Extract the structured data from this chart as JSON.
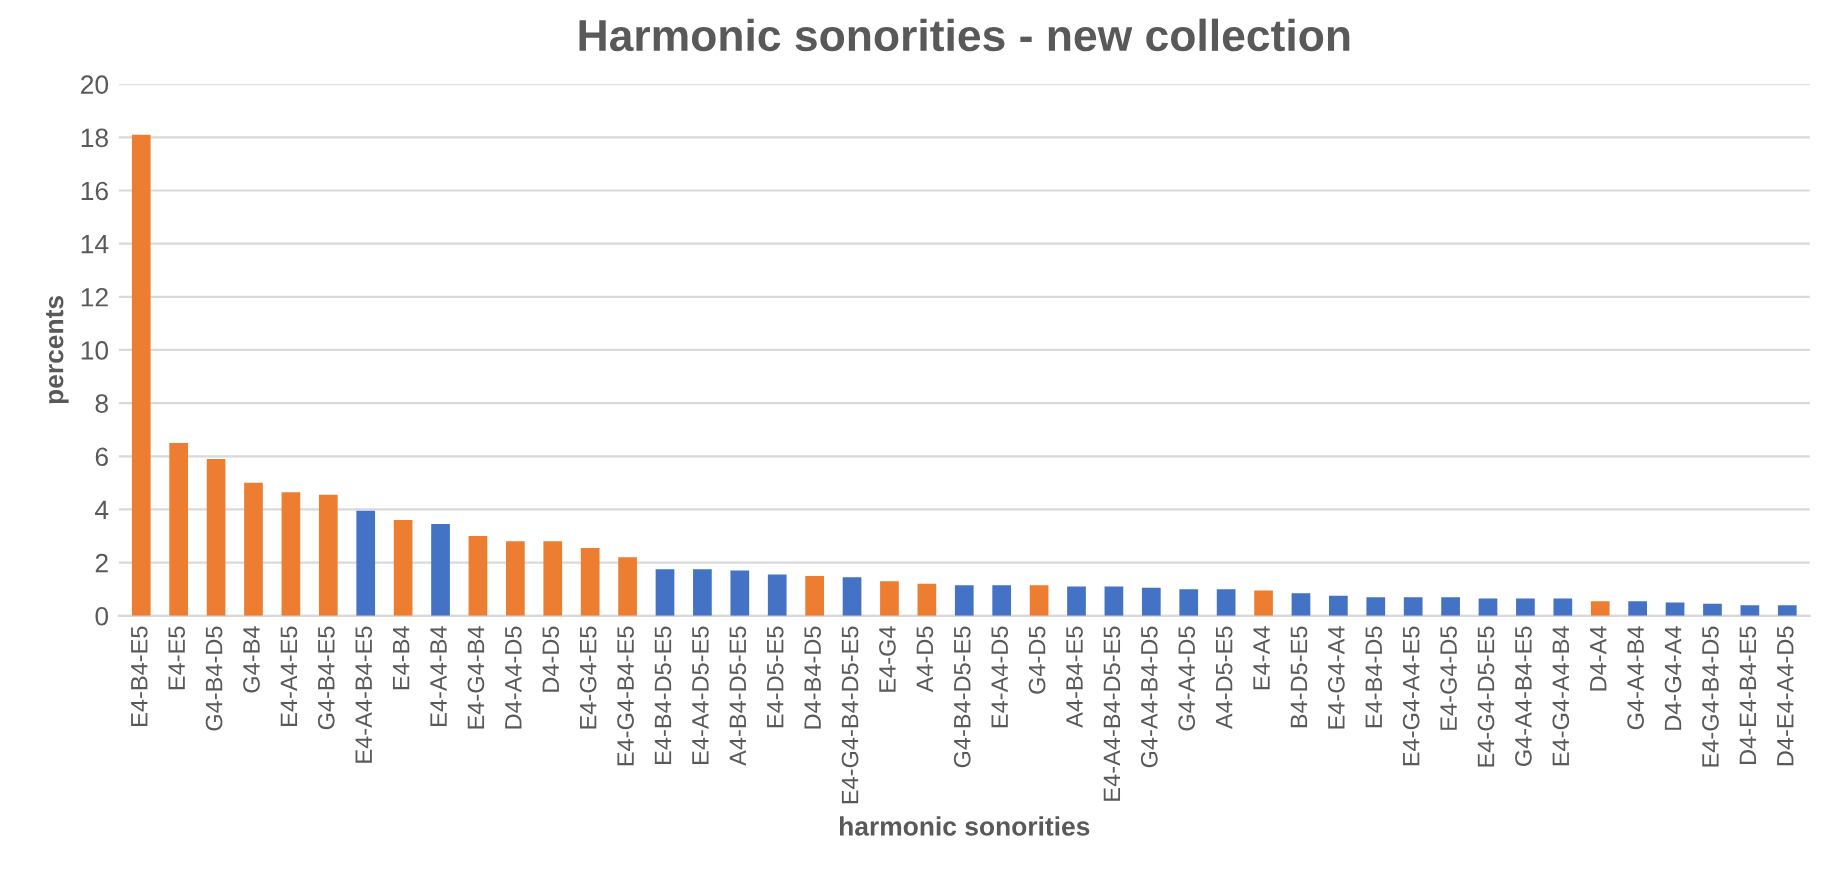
{
  "chart_data": {
    "type": "bar",
    "title": "Harmonic sonorities - new collection",
    "xlabel": "harmonic sonorities",
    "ylabel": "percents",
    "categories": [
      "E4-B4-E5",
      "E4-E5",
      "G4-B4-D5",
      "G4-B4",
      "E4-A4-E5",
      "G4-B4-E5",
      "E4-A4-B4-E5",
      "E4-B4",
      "E4-A4-B4",
      "E4-G4-B4",
      "D4-A4-D5",
      "D4-D5",
      "E4-G4-E5",
      "E4-G4-B4-E5",
      "E4-B4-D5-E5",
      "E4-A4-D5-E5",
      "A4-B4-D5-E5",
      "E4-D5-E5",
      "D4-B4-D5",
      "E4-G4-B4-D5-E5",
      "E4-G4",
      "A4-D5",
      "G4-B4-D5-E5",
      "E4-A4-D5",
      "G4-D5",
      "A4-B4-E5",
      "E4-A4-B4-D5-E5",
      "G4-A4-B4-D5",
      "G4-A4-D5",
      "A4-D5-E5",
      "E4-A4",
      "B4-D5-E5",
      "E4-G4-A4",
      "E4-B4-D5",
      "E4-G4-A4-E5",
      "E4-G4-D5",
      "E4-G4-D5-E5",
      "G4-A4-B4-E5",
      "E4-G4-A4-B4",
      "D4-A4",
      "G4-A4-B4",
      "D4-G4-A4",
      "E4-G4-B4-D5",
      "D4-E4-B4-E5",
      "D4-E4-A4-D5"
    ],
    "values": [
      18.1,
      6.5,
      5.9,
      5.0,
      4.65,
      4.55,
      3.95,
      3.6,
      3.45,
      3.0,
      2.8,
      2.8,
      2.55,
      2.2,
      1.75,
      1.75,
      1.7,
      1.55,
      1.5,
      1.45,
      1.3,
      1.2,
      1.15,
      1.15,
      1.15,
      1.1,
      1.1,
      1.05,
      1.0,
      1.0,
      0.95,
      0.85,
      0.75,
      0.7,
      0.7,
      0.7,
      0.65,
      0.65,
      0.65,
      0.55,
      0.55,
      0.5,
      0.45,
      0.4,
      0.4
    ],
    "colors": [
      "#ed7d31",
      "#ed7d31",
      "#ed7d31",
      "#ed7d31",
      "#ed7d31",
      "#ed7d31",
      "#4472c4",
      "#ed7d31",
      "#4472c4",
      "#ed7d31",
      "#ed7d31",
      "#ed7d31",
      "#ed7d31",
      "#ed7d31",
      "#4472c4",
      "#4472c4",
      "#4472c4",
      "#4472c4",
      "#ed7d31",
      "#4472c4",
      "#ed7d31",
      "#ed7d31",
      "#4472c4",
      "#4472c4",
      "#ed7d31",
      "#4472c4",
      "#4472c4",
      "#4472c4",
      "#4472c4",
      "#4472c4",
      "#ed7d31",
      "#4472c4",
      "#4472c4",
      "#4472c4",
      "#4472c4",
      "#4472c4",
      "#4472c4",
      "#4472c4",
      "#4472c4",
      "#ed7d31",
      "#4472c4",
      "#4472c4",
      "#4472c4",
      "#4472c4",
      "#4472c4"
    ],
    "ylim": [
      0,
      20
    ],
    "yticks": [
      0,
      2,
      4,
      6,
      8,
      10,
      12,
      14,
      16,
      18,
      20
    ],
    "grid": "y"
  }
}
